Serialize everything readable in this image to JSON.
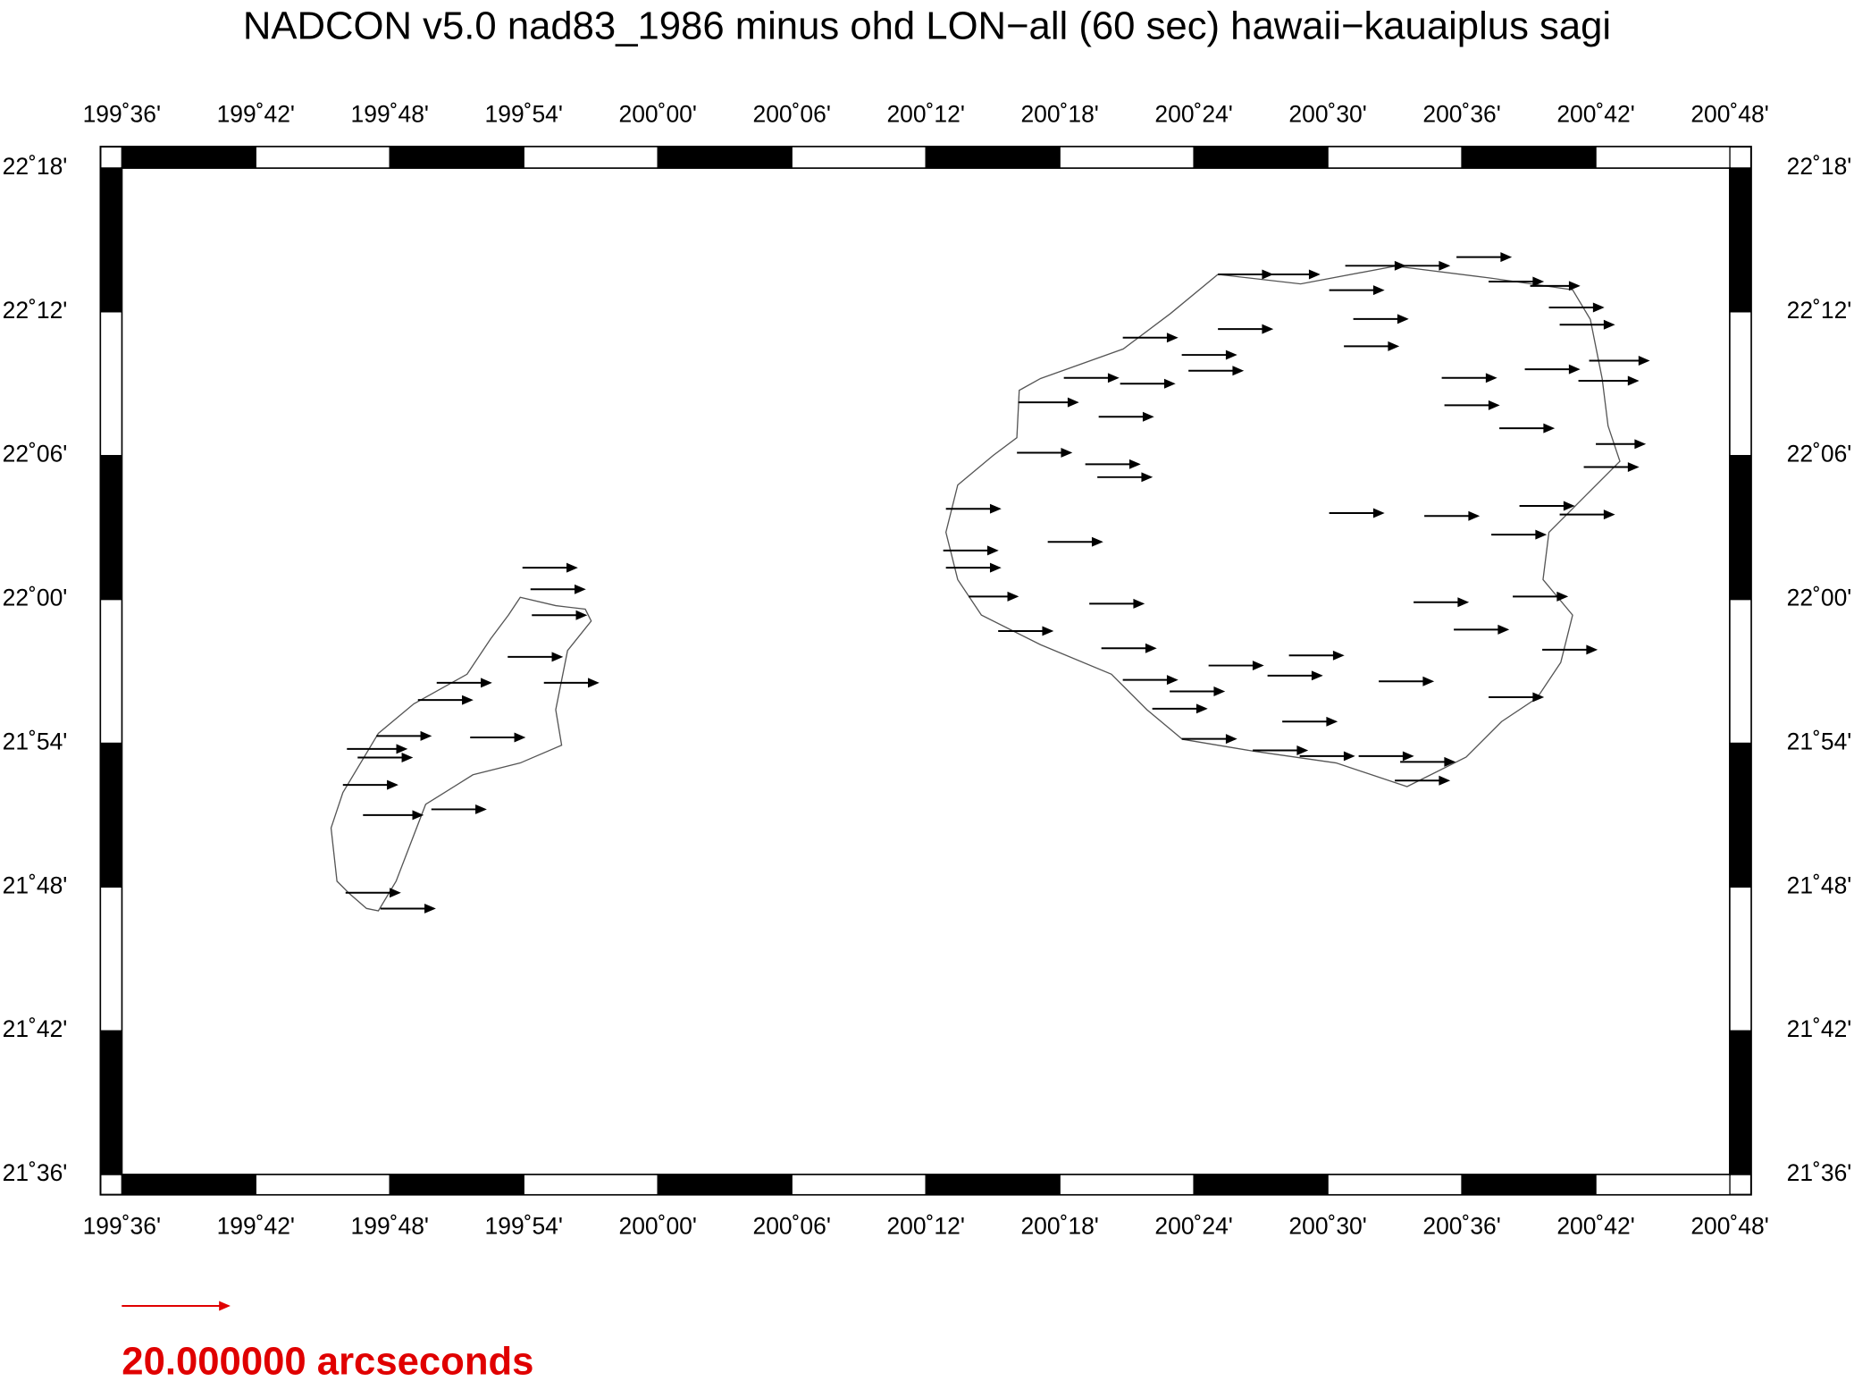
{
  "chart_data": {
    "type": "vector",
    "title": "NADCON v5.0 nad83_1986 minus ohd LON−all (60 sec) hawaii−kauaiplus sagi",
    "xlim": [
      199.6,
      200.8
    ],
    "ylim": [
      21.6,
      22.3
    ],
    "xticks": [
      {
        "value": 199.6,
        "label": "199˚36'"
      },
      {
        "value": 199.7,
        "label": "199˚42'"
      },
      {
        "value": 199.8,
        "label": "199˚48'"
      },
      {
        "value": 199.9,
        "label": "199˚54'"
      },
      {
        "value": 200.0,
        "label": "200˚00'"
      },
      {
        "value": 200.1,
        "label": "200˚06'"
      },
      {
        "value": 200.2,
        "label": "200˚12'"
      },
      {
        "value": 200.3,
        "label": "200˚18'"
      },
      {
        "value": 200.4,
        "label": "200˚24'"
      },
      {
        "value": 200.5,
        "label": "200˚30'"
      },
      {
        "value": 200.6,
        "label": "200˚36'"
      },
      {
        "value": 200.7,
        "label": "200˚42'"
      },
      {
        "value": 200.8,
        "label": "200˚48'"
      }
    ],
    "yticks": [
      {
        "value": 21.6,
        "label": "21˚36'"
      },
      {
        "value": 21.7,
        "label": "21˚42'"
      },
      {
        "value": 21.8,
        "label": "21˚48'"
      },
      {
        "value": 21.9,
        "label": "21˚54'"
      },
      {
        "value": 22.0,
        "label": "22˚00'"
      },
      {
        "value": 22.1,
        "label": "22˚06'"
      },
      {
        "value": 22.2,
        "label": "22˚12'"
      },
      {
        "value": 22.3,
        "label": "22˚18'"
      }
    ],
    "color": "#000000",
    "x": [
      199.899,
      199.905,
      199.906,
      199.888,
      199.915,
      199.835,
      199.821,
      199.79,
      199.768,
      199.776,
      199.86,
      199.765,
      199.78,
      199.831,
      199.767,
      199.793,
      200.418,
      200.453,
      200.513,
      200.55,
      200.596,
      200.62,
      200.651,
      200.501,
      200.519,
      200.512,
      200.418,
      200.347,
      200.391,
      200.396,
      200.345,
      200.303,
      200.269,
      200.329,
      200.268,
      200.319,
      200.328,
      200.585,
      200.587,
      200.628,
      200.501,
      200.572,
      200.622,
      200.643,
      200.291,
      200.215,
      200.213,
      200.215,
      200.232,
      200.254,
      200.322,
      200.331,
      200.411,
      200.471,
      200.455,
      200.538,
      200.564,
      200.594,
      200.638,
      200.66,
      200.62,
      200.347,
      200.382,
      200.369,
      200.466,
      200.391,
      200.444,
      200.479,
      200.523,
      200.554,
      200.55,
      200.665,
      200.673,
      200.695,
      200.687,
      200.7,
      200.691,
      200.673,
      200.647
    ],
    "y": [
      22.022,
      22.007,
      21.989,
      21.96,
      21.942,
      21.942,
      21.93,
      21.905,
      21.896,
      21.89,
      21.904,
      21.871,
      21.85,
      21.854,
      21.796,
      21.785,
      22.226,
      22.226,
      22.232,
      22.232,
      22.238,
      22.221,
      22.218,
      22.215,
      22.195,
      22.176,
      22.188,
      22.182,
      22.17,
      22.159,
      22.15,
      22.154,
      22.137,
      22.127,
      22.102,
      22.094,
      22.085,
      22.154,
      22.135,
      22.119,
      22.06,
      22.058,
      22.045,
      22.065,
      22.04,
      22.063,
      22.034,
      22.022,
      22.002,
      21.978,
      21.997,
      21.966,
      21.954,
      21.961,
      21.947,
      21.943,
      21.998,
      21.979,
      22.002,
      21.965,
      21.932,
      21.944,
      21.936,
      21.924,
      21.915,
      21.903,
      21.895,
      21.891,
      21.891,
      21.887,
      21.874,
      22.203,
      22.191,
      22.166,
      22.152,
      22.108,
      22.092,
      22.059,
      22.16
    ],
    "values": [
      10,
      10,
      10,
      10,
      10,
      10,
      10,
      10,
      11,
      10,
      10,
      10,
      11,
      10,
      10,
      10,
      10,
      10,
      11,
      10,
      10,
      10,
      9,
      10,
      10,
      10,
      10,
      10,
      10,
      10,
      10,
      10,
      11,
      10,
      10,
      10,
      10,
      10,
      10,
      10,
      10,
      10,
      10,
      10,
      10,
      10,
      10,
      10,
      9,
      10,
      10,
      10,
      10,
      10,
      10,
      10,
      10,
      10,
      10,
      10,
      10,
      10,
      10,
      10,
      10,
      10,
      10,
      10,
      10,
      10,
      10,
      10,
      10,
      11,
      11,
      9,
      10,
      10,
      10
    ],
    "scale_arrow": {
      "value": 20,
      "label": "20.000000 arcseconds",
      "color": "#e00000"
    }
  }
}
